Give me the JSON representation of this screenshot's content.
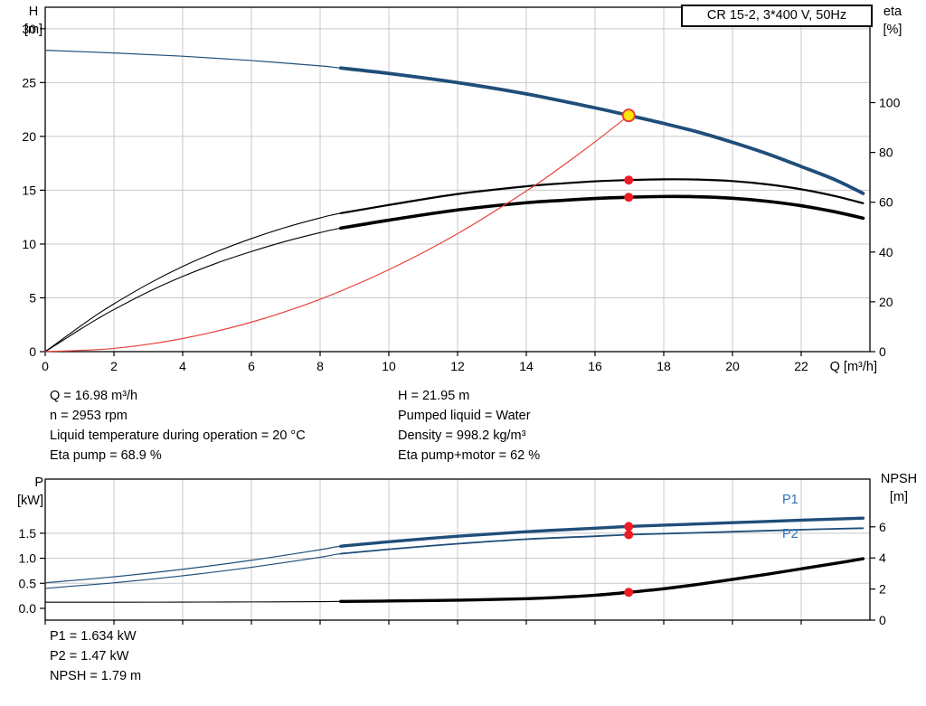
{
  "header": {
    "title_box": "CR 15-2, 3*400 V, 50Hz"
  },
  "axes_labels": {
    "top_left_name": "H",
    "top_left_unit": "[m]",
    "top_right_name": "eta",
    "top_right_unit": "[%]",
    "x_label": "Q [m³/h]",
    "bottom_left_name": "P",
    "bottom_left_unit": "[kW]",
    "bottom_right_name": "NPSH",
    "bottom_right_unit": "[m]",
    "p1_curve_label": "P1",
    "p2_curve_label": "P2"
  },
  "results_top": {
    "left": [
      "Q = 16.98 m³/h",
      "n = 2953 rpm",
      "Liquid temperature during operation = 20 °C",
      "Eta pump = 68.9 %"
    ],
    "right": [
      "H = 21.95 m",
      "Pumped liquid = Water",
      "Density = 998.2 kg/m³",
      "Eta pump+motor = 62 %"
    ]
  },
  "results_bottom": [
    "P1 = 1.634 kW",
    "P2 = 1.47 kW",
    "NPSH = 1.79 m"
  ],
  "colors": {
    "curve_blue": "#1f4e79",
    "label_blue": "#2e74b5",
    "curve_black": "#000000",
    "curve_red": "#e8413c",
    "marker_red": "#ed1c24",
    "marker_yellow": "#ffe600",
    "grid": "#c8c8c8"
  },
  "chart_data": [
    {
      "type": "line",
      "name": "qh-eta-chart",
      "x": {
        "min": 0,
        "max": 24,
        "ticks": [
          {
            "v": 0,
            "label": "0"
          },
          {
            "v": 2,
            "label": "2"
          },
          {
            "v": 4,
            "label": "4"
          },
          {
            "v": 6,
            "label": "6"
          },
          {
            "v": 8,
            "label": "8"
          },
          {
            "v": 10,
            "label": "10"
          },
          {
            "v": 12,
            "label": "12"
          },
          {
            "v": 14,
            "label": "14"
          },
          {
            "v": 16,
            "label": "16"
          },
          {
            "v": 18,
            "label": "18"
          },
          {
            "v": 20,
            "label": "20"
          },
          {
            "v": 22,
            "label": "22"
          }
        ]
      },
      "y_left": {
        "label": "H [m]",
        "min": 0,
        "max": 32,
        "ticks": [
          {
            "v": 0,
            "label": "0"
          },
          {
            "v": 5,
            "label": "5"
          },
          {
            "v": 10,
            "label": "10"
          },
          {
            "v": 15,
            "label": "15"
          },
          {
            "v": 20,
            "label": "20"
          },
          {
            "v": 25,
            "label": "25"
          },
          {
            "v": 30,
            "label": "30"
          }
        ]
      },
      "y_right": {
        "label": "eta [%]",
        "min": 0,
        "max": 138.3,
        "ticks": [
          {
            "v": 0,
            "label": "0"
          },
          {
            "v": 20,
            "label": "20"
          },
          {
            "v": 40,
            "label": "40"
          },
          {
            "v": 60,
            "label": "60"
          },
          {
            "v": 80,
            "label": "80"
          },
          {
            "v": 100,
            "label": "100"
          }
        ]
      },
      "grid_v": [
        2,
        4,
        6,
        8,
        10,
        12,
        14,
        16,
        18,
        20,
        22
      ],
      "grid_h": [
        5,
        10,
        15,
        20,
        25,
        30
      ],
      "series": [
        {
          "name": "head-curve",
          "axis": "left",
          "color_key": "curve_blue",
          "thin": 1.2,
          "thick": 3.8,
          "thick_from": 8.6,
          "points": [
            [
              0,
              28
            ],
            [
              2,
              27.75
            ],
            [
              4,
              27.45
            ],
            [
              6,
              27.05
            ],
            [
              8,
              26.55
            ],
            [
              8.6,
              26.35
            ],
            [
              10,
              25.85
            ],
            [
              12,
              25.0
            ],
            [
              14,
              23.95
            ],
            [
              16,
              22.65
            ],
            [
              16.98,
              21.95
            ],
            [
              18,
              21.2
            ],
            [
              19,
              20.4
            ],
            [
              20,
              19.45
            ],
            [
              21,
              18.4
            ],
            [
              22,
              17.2
            ],
            [
              23,
              15.95
            ],
            [
              23.8,
              14.7
            ]
          ]
        },
        {
          "name": "eta-pump-curve",
          "axis": "right",
          "color_key": "curve_black",
          "thin": 1.1,
          "thick": 2.2,
          "thick_from": 8.6,
          "points": [
            [
              0,
              0
            ],
            [
              0.5,
              5
            ],
            [
              1,
              10
            ],
            [
              1.5,
              14.8
            ],
            [
              2,
              19.2
            ],
            [
              3,
              27.2
            ],
            [
              4,
              34.2
            ],
            [
              5,
              40.2
            ],
            [
              6,
              45.4
            ],
            [
              7,
              49.9
            ],
            [
              8,
              53.7
            ],
            [
              8.6,
              55.6
            ],
            [
              10,
              58.9
            ],
            [
              12,
              63.3
            ],
            [
              14,
              66.4
            ],
            [
              15,
              67.5
            ],
            [
              16,
              68.4
            ],
            [
              16.98,
              68.9
            ],
            [
              18,
              69.2
            ],
            [
              19,
              69.1
            ],
            [
              20,
              68.5
            ],
            [
              21,
              67.2
            ],
            [
              22,
              65.2
            ],
            [
              23,
              62.4
            ],
            [
              23.8,
              59.6
            ]
          ]
        },
        {
          "name": "eta-pump-motor-curve",
          "axis": "right",
          "color_key": "curve_black",
          "thin": 1.1,
          "thick": 3.6,
          "thick_from": 8.6,
          "points": [
            [
              0,
              0
            ],
            [
              0.5,
              4.4
            ],
            [
              1,
              8.8
            ],
            [
              1.5,
              13
            ],
            [
              2,
              16.9
            ],
            [
              3,
              24
            ],
            [
              4,
              30.2
            ],
            [
              5,
              35.6
            ],
            [
              6,
              40.2
            ],
            [
              7,
              44.3
            ],
            [
              8,
              47.8
            ],
            [
              8.6,
              49.6
            ],
            [
              10,
              52.8
            ],
            [
              12,
              56.9
            ],
            [
              14,
              59.8
            ],
            [
              15,
              60.7
            ],
            [
              16,
              61.5
            ],
            [
              16.98,
              62
            ],
            [
              18,
              62.3
            ],
            [
              19,
              62.2
            ],
            [
              20,
              61.6
            ],
            [
              21,
              60.4
            ],
            [
              22,
              58.6
            ],
            [
              23,
              56.1
            ],
            [
              23.8,
              53.6
            ]
          ]
        },
        {
          "name": "system-curve",
          "axis": "left",
          "color_key": "curve_red",
          "thin": 1.2,
          "points": [
            [
              0,
              0
            ],
            [
              2,
              0.3
            ],
            [
              4,
              1.22
            ],
            [
              6,
              2.74
            ],
            [
              8,
              4.87
            ],
            [
              10,
              7.61
            ],
            [
              12,
              10.96
            ],
            [
              14,
              14.92
            ],
            [
              15,
              17.13
            ],
            [
              16,
              19.49
            ],
            [
              16.98,
              21.95
            ]
          ]
        }
      ],
      "markers": [
        {
          "name": "eta-pump-marker",
          "axis": "right",
          "x": 16.98,
          "y": 68.9,
          "r": 5,
          "fill_key": "marker_red"
        },
        {
          "name": "eta-pump-motor-marker",
          "axis": "right",
          "x": 16.98,
          "y": 62,
          "r": 5,
          "fill_key": "marker_red"
        },
        {
          "name": "duty-point-marker",
          "axis": "left",
          "x": 16.98,
          "y": 21.95,
          "r": 6.5,
          "fill_key": "marker_yellow",
          "stroke_key": "curve_red",
          "stroke_w": 2
        }
      ]
    },
    {
      "type": "line",
      "name": "power-npsh-chart",
      "x": {
        "min": 0,
        "max": 24,
        "ticks": [
          0,
          2,
          4,
          6,
          8,
          10,
          12,
          14,
          16,
          18,
          20,
          22
        ]
      },
      "y_left": {
        "label": "P [kW]",
        "min": -0.235,
        "max": 2.58,
        "ticks": [
          {
            "v": 0,
            "label": "0.0"
          },
          {
            "v": 0.5,
            "label": "0.5"
          },
          {
            "v": 1,
            "label": "1.0"
          },
          {
            "v": 1.5,
            "label": "1.5"
          }
        ]
      },
      "y_right": {
        "label": "NPSH [m]",
        "min": 0,
        "max": 9.07,
        "ticks": [
          {
            "v": 0,
            "label": "0"
          },
          {
            "v": 2,
            "label": "2"
          },
          {
            "v": 4,
            "label": "4"
          },
          {
            "v": 6,
            "label": "6"
          }
        ]
      },
      "grid_v": [
        2,
        4,
        6,
        8,
        10,
        12,
        14,
        16,
        18,
        20,
        22
      ],
      "grid_h": [
        0.5,
        1,
        1.5
      ],
      "series": [
        {
          "name": "p1-curve",
          "axis": "left",
          "color_key": "curve_blue",
          "thin": 1.2,
          "thick": 3.4,
          "thick_from": 8.6,
          "points": [
            [
              0,
              0.51
            ],
            [
              2,
              0.63
            ],
            [
              4,
              0.78
            ],
            [
              6,
              0.96
            ],
            [
              8,
              1.17
            ],
            [
              8.6,
              1.24
            ],
            [
              10,
              1.33
            ],
            [
              12,
              1.44
            ],
            [
              14,
              1.53
            ],
            [
              16,
              1.6
            ],
            [
              16.98,
              1.634
            ],
            [
              18,
              1.66
            ],
            [
              20,
              1.71
            ],
            [
              22,
              1.76
            ],
            [
              23.8,
              1.8
            ]
          ]
        },
        {
          "name": "p2-curve",
          "axis": "left",
          "color_key": "curve_blue",
          "thin": 1.2,
          "thick": 1.8,
          "thick_from": 8.6,
          "points": [
            [
              0,
              0.4
            ],
            [
              2,
              0.51
            ],
            [
              4,
              0.65
            ],
            [
              6,
              0.82
            ],
            [
              8,
              1.02
            ],
            [
              8.6,
              1.09
            ],
            [
              10,
              1.18
            ],
            [
              12,
              1.29
            ],
            [
              14,
              1.38
            ],
            [
              16,
              1.44
            ],
            [
              16.98,
              1.47
            ],
            [
              18,
              1.49
            ],
            [
              20,
              1.53
            ],
            [
              22,
              1.57
            ],
            [
              23.8,
              1.6
            ]
          ]
        },
        {
          "name": "npsh-curve",
          "axis": "right",
          "color_key": "curve_black",
          "thin": 1.1,
          "thick": 3.4,
          "thick_from": 8.6,
          "points": [
            [
              0,
              1.15
            ],
            [
              2,
              1.15
            ],
            [
              4,
              1.16
            ],
            [
              6,
              1.17
            ],
            [
              8,
              1.19
            ],
            [
              8.6,
              1.2
            ],
            [
              10,
              1.23
            ],
            [
              12,
              1.28
            ],
            [
              14,
              1.38
            ],
            [
              15,
              1.47
            ],
            [
              16,
              1.6
            ],
            [
              16.98,
              1.79
            ],
            [
              18,
              2.02
            ],
            [
              19,
              2.3
            ],
            [
              20,
              2.62
            ],
            [
              21,
              2.95
            ],
            [
              22,
              3.3
            ],
            [
              23,
              3.65
            ],
            [
              23.8,
              3.95
            ]
          ]
        }
      ],
      "markers": [
        {
          "name": "p1-marker",
          "axis": "left",
          "x": 16.98,
          "y": 1.634,
          "r": 5,
          "fill_key": "marker_red"
        },
        {
          "name": "p2-marker",
          "axis": "left",
          "x": 16.98,
          "y": 1.47,
          "r": 5,
          "fill_key": "marker_red"
        },
        {
          "name": "npsh-marker",
          "axis": "right",
          "x": 16.98,
          "y": 1.79,
          "r": 5,
          "fill_key": "marker_red"
        }
      ]
    }
  ]
}
